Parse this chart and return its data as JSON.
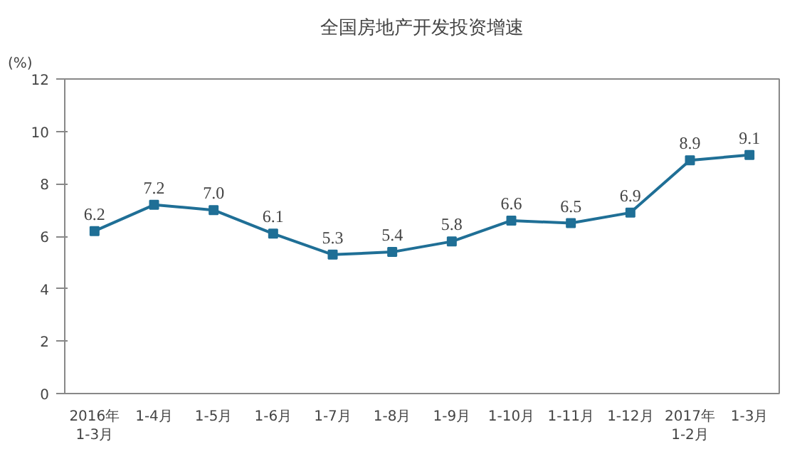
{
  "chart_data": {
    "type": "line",
    "title": "全国房地产开发投资增速",
    "ylabel": "(%)",
    "categories": [
      "2016年\n1-3月",
      "1-4月",
      "1-5月",
      "1-6月",
      "1-7月",
      "1-8月",
      "1-9月",
      "1-10月",
      "1-11月",
      "1-12月",
      "2017年\n1-2月",
      "1-3月"
    ],
    "series": [
      {
        "color": "#1f6f96",
        "values": [
          6.2,
          7.2,
          7.0,
          6.1,
          5.3,
          5.4,
          5.8,
          6.6,
          6.5,
          6.9,
          8.9,
          9.1
        ],
        "value_labels": [
          "6.2",
          "7.2",
          "7.0",
          "6.1",
          "5.3",
          "5.4",
          "5.8",
          "6.6",
          "6.5",
          "6.9",
          "8.9",
          "9.1"
        ]
      }
    ],
    "ylim": [
      0,
      12
    ],
    "yticks": [
      0,
      2,
      4,
      6,
      8,
      10,
      12
    ],
    "grid": false,
    "marker": "square",
    "line_style": "solid"
  }
}
